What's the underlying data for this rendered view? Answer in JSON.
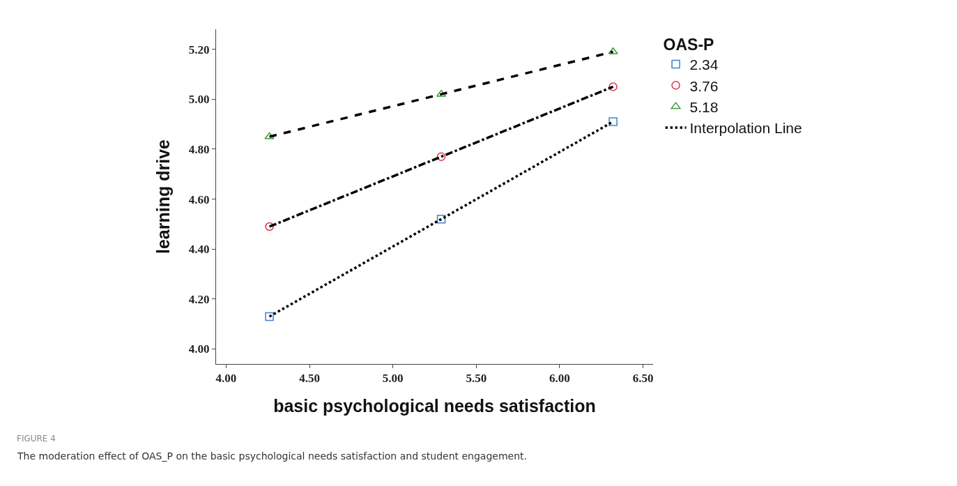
{
  "chart_data": {
    "type": "scatter",
    "xlabel": "basic psychological needs satisfaction",
    "ylabel": "learning drive",
    "legend_title": "OAS-P",
    "annotations": [
      "FIGURE 4",
      "The moderation effect of OAS_P on the basic psychological needs satisfaction and student engagement."
    ],
    "series": [
      {
        "name": "2.34",
        "marker": "square",
        "color": "#3b82d6",
        "x": [
          4.26,
          5.29,
          6.32
        ],
        "values": [
          4.13,
          4.52,
          4.91
        ]
      },
      {
        "name": "3.76",
        "marker": "circle",
        "color": "#e0304a",
        "x": [
          4.26,
          5.29,
          6.32
        ],
        "values": [
          4.49,
          4.77,
          5.05
        ]
      },
      {
        "name": "5.18",
        "marker": "triangle",
        "color": "#3a9a3a",
        "x": [
          4.26,
          5.29,
          6.32
        ],
        "values": [
          4.85,
          5.02,
          5.19
        ]
      },
      {
        "name": "Interpolation Line",
        "type": "line",
        "line_style": "dotted",
        "marker": "none",
        "color": "#000000",
        "x": [
          4.26,
          5.29,
          6.32
        ],
        "values": [
          4.13,
          4.52,
          4.91
        ]
      },
      {
        "type": "line",
        "line_style": "dashdot",
        "marker": "none",
        "color": "#000000",
        "x": [
          4.26,
          5.29,
          6.32
        ],
        "values": [
          4.49,
          4.77,
          5.05
        ]
      },
      {
        "type": "line",
        "line_style": "dashed",
        "marker": "none",
        "color": "#000000",
        "x": [
          4.26,
          5.29,
          6.32
        ],
        "values": [
          4.85,
          5.02,
          5.19
        ]
      }
    ],
    "xlim": [
      3.94,
      6.56
    ],
    "xticks": [
      {
        "value": 4,
        "label": "4.00"
      },
      {
        "value": 4.5,
        "label": "4.50"
      },
      {
        "value": 5,
        "label": "5.00"
      },
      {
        "value": 5.5,
        "label": "5.50"
      },
      {
        "value": 6,
        "label": "6.00"
      },
      {
        "value": 6.5,
        "label": "6.50"
      }
    ],
    "ylim": [
      3.94,
      5.28
    ],
    "yticks": [
      {
        "value": 4,
        "label": "4.00"
      },
      {
        "value": 4.2,
        "label": "4.20"
      },
      {
        "value": 4.4,
        "label": "4.40"
      },
      {
        "value": 4.6,
        "label": "4.60"
      },
      {
        "value": 4.8,
        "label": "4.80"
      },
      {
        "value": 5,
        "label": "5.00"
      },
      {
        "value": 5.2,
        "label": "5.20"
      }
    ],
    "legend": "top right"
  }
}
